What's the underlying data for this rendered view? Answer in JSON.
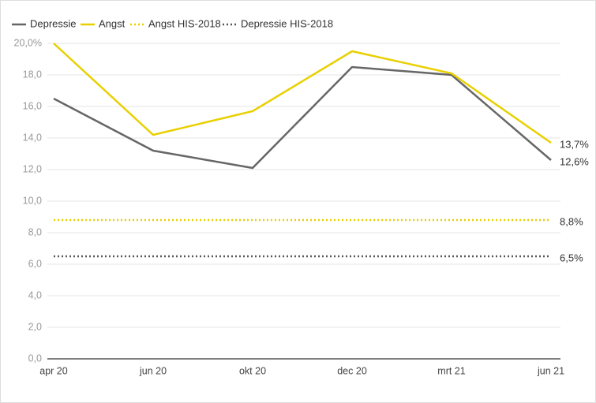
{
  "chart_data": {
    "type": "line",
    "categories": [
      "apr 20",
      "jun 20",
      "okt 20",
      "dec 20",
      "mrt 21",
      "jun 21"
    ],
    "series": [
      {
        "name": "Depressie",
        "color": "#666666",
        "style": "solid",
        "values": [
          16.5,
          13.2,
          12.1,
          18.5,
          18.0,
          12.6
        ],
        "value_labels": [
          null,
          null,
          null,
          null,
          null,
          "12,6%"
        ]
      },
      {
        "name": "Angst",
        "color": "#e8d000",
        "style": "solid",
        "values": [
          20.0,
          14.2,
          15.7,
          19.5,
          18.1,
          13.7
        ],
        "value_labels": [
          null,
          null,
          null,
          null,
          null,
          "13,7%"
        ]
      },
      {
        "name": "Angst HIS-2018",
        "color": "#e8d000",
        "style": "dotted",
        "values": [
          8.8,
          8.8,
          8.8,
          8.8,
          8.8,
          8.8
        ],
        "value_labels": [
          null,
          null,
          null,
          null,
          null,
          "8,8%"
        ]
      },
      {
        "name": "Depressie HIS-2018",
        "color": "#555555",
        "style": "dotted",
        "values": [
          6.5,
          6.5,
          6.5,
          6.5,
          6.5,
          6.5
        ],
        "value_labels": [
          null,
          null,
          null,
          null,
          null,
          "6,5%"
        ]
      }
    ],
    "ylim": [
      0,
      20
    ],
    "yticks": [
      {
        "value": 0,
        "label": "0,0"
      },
      {
        "value": 2,
        "label": "2,0"
      },
      {
        "value": 4,
        "label": "4,0"
      },
      {
        "value": 6,
        "label": "6,0"
      },
      {
        "value": 8,
        "label": "8,0"
      },
      {
        "value": 10,
        "label": "10,0"
      },
      {
        "value": 12,
        "label": "12,0"
      },
      {
        "value": 14,
        "label": "14,0"
      },
      {
        "value": 16,
        "label": "16,0"
      },
      {
        "value": 18,
        "label": "18,0"
      },
      {
        "value": 20,
        "label": "20,0%"
      }
    ],
    "grid": true,
    "legend": "top-left"
  }
}
